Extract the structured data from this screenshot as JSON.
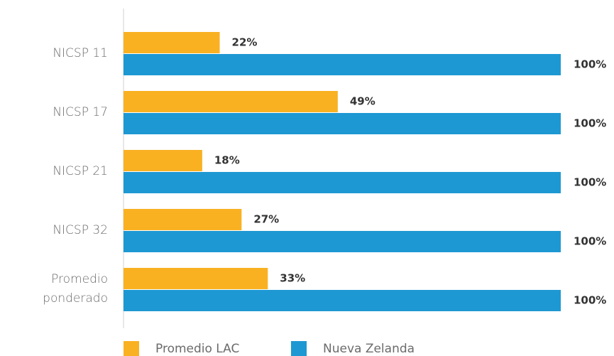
{
  "chart_data": {
    "type": "hbar",
    "categories": [
      "NICSP 11",
      "NICSP 17",
      "NICSP 21",
      "NICSP 32",
      "Promedio ponderado"
    ],
    "series": [
      {
        "name": "Promedio LAC",
        "color": "#F9B122",
        "values": [
          22,
          49,
          18,
          27,
          33
        ],
        "value_labels": [
          "22%",
          "49%",
          "18%",
          "27%",
          "33%"
        ]
      },
      {
        "name": "Nueva Zelanda",
        "color": "#1E98D3",
        "values": [
          100,
          100,
          100,
          100,
          100
        ],
        "value_labels": [
          "100%",
          "100%",
          "100%",
          "100%",
          "100%"
        ]
      }
    ],
    "xlim": [
      0,
      100
    ]
  }
}
